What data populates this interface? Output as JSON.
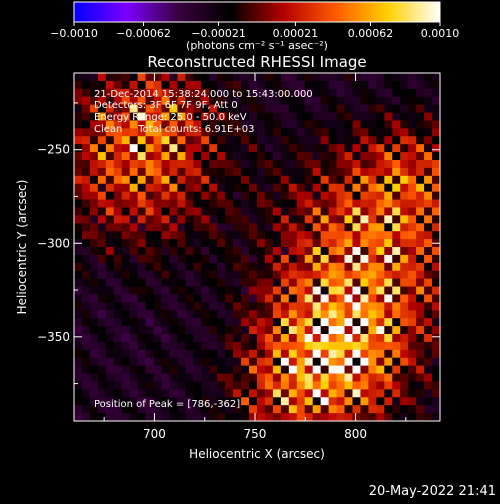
{
  "chart_data": {
    "type": "heatmap",
    "title": "Reconstructed RHESSI Image",
    "xlabel": "Heliocentric X (arcsec)",
    "ylabel": "Heliocentric Y (arcsec)",
    "xlim": [
      660,
      842
    ],
    "ylim": [
      -395,
      -209
    ],
    "x_ticks": [
      {
        "value": 700,
        "label": "700"
      },
      {
        "value": 750,
        "label": "750"
      },
      {
        "value": 800,
        "label": "800"
      }
    ],
    "y_ticks": [
      {
        "value": -250,
        "label": "−250"
      },
      {
        "value": -300,
        "label": "−300"
      },
      {
        "value": -350,
        "label": "−350"
      }
    ],
    "colorbar": {
      "range": [
        -0.001,
        0.001
      ],
      "unit_label": "(photons cm⁻² s⁻¹ asec⁻²)",
      "ticks": [
        {
          "value": -0.001,
          "label": "−0.0010"
        },
        {
          "value": -0.00062,
          "label": "−0.00062"
        },
        {
          "value": -0.00021,
          "label": "−0.00021"
        },
        {
          "value": 0.00021,
          "label": "0.00021"
        },
        {
          "value": 0.00062,
          "label": "0.00062"
        },
        {
          "value": 0.001,
          "label": "0.0010"
        }
      ],
      "colormap": [
        "#0000ff",
        "#7c00ff",
        "#3a003e",
        "#000000",
        "#b40000",
        "#ff5a00",
        "#ffd000",
        "#ffffff"
      ]
    },
    "annotations": [
      "21-Dec-2014 15:38:24.000 to 15:43:00.000",
      "Detectors: 3F 6F 7F 9F, Att 0",
      "Energy Range: 25.0 - 50.0 keV",
      "Clean     Total counts: 6.91E+03"
    ],
    "peak_label": "Position of Peak = [786,-362]",
    "peak": [
      786,
      -362
    ],
    "grid": false,
    "legend": "none"
  },
  "footer_timestamp": "20-May-2022 21:41"
}
